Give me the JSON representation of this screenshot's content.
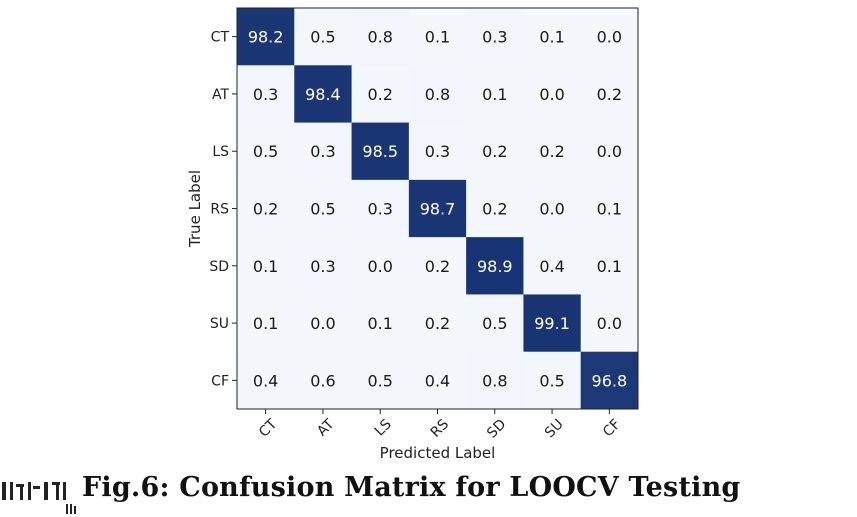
{
  "caption": "Fig.6: Confusion Matrix for LOOCV Testing",
  "chart_data": {
    "type": "heatmap",
    "title": "",
    "xlabel": "Predicted Label",
    "ylabel": "True Label",
    "x_categories": [
      "CT",
      "AT",
      "LS",
      "RS",
      "SD",
      "SU",
      "CF"
    ],
    "y_categories": [
      "CT",
      "AT",
      "LS",
      "RS",
      "SD",
      "SU",
      "CF"
    ],
    "values": [
      [
        98.2,
        0.5,
        0.8,
        0.1,
        0.3,
        0.1,
        0.0
      ],
      [
        0.3,
        98.4,
        0.2,
        0.8,
        0.1,
        0.0,
        0.2
      ],
      [
        0.5,
        0.3,
        98.5,
        0.3,
        0.2,
        0.2,
        0.0
      ],
      [
        0.2,
        0.5,
        0.3,
        98.7,
        0.2,
        0.0,
        0.1
      ],
      [
        0.1,
        0.3,
        0.0,
        0.2,
        98.9,
        0.4,
        0.1
      ],
      [
        0.1,
        0.0,
        0.1,
        0.2,
        0.5,
        99.1,
        0.0
      ],
      [
        0.4,
        0.6,
        0.5,
        0.4,
        0.8,
        0.5,
        96.8
      ]
    ],
    "value_range": [
      0,
      100
    ],
    "colormap": {
      "low": "#f4f8fd",
      "high": "#163272"
    },
    "grid": false,
    "legend": "none"
  }
}
